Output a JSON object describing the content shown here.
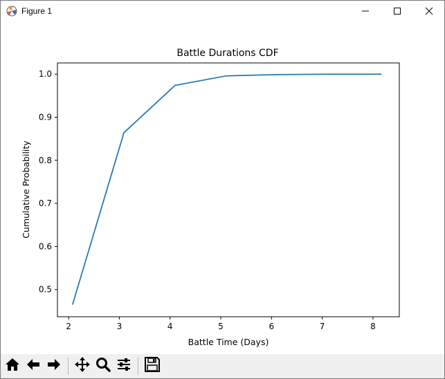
{
  "window": {
    "title": "Figure 1",
    "icons": {
      "app": "matplotlib-icon",
      "minimize": "minimize-icon",
      "maximize": "maximize-icon",
      "close": "close-icon"
    }
  },
  "toolbar": {
    "buttons": [
      {
        "name": "home",
        "icon": "home-icon"
      },
      {
        "name": "back",
        "icon": "arrow-left-icon"
      },
      {
        "name": "forward",
        "icon": "arrow-right-icon"
      },
      {
        "name": "pan",
        "icon": "move-icon"
      },
      {
        "name": "zoom",
        "icon": "magnifier-icon"
      },
      {
        "name": "configure",
        "icon": "sliders-icon"
      },
      {
        "name": "save",
        "icon": "floppy-disk-icon"
      }
    ]
  },
  "colors": {
    "line": "#1f77b4",
    "toolbar_bg": "#f0f0f0"
  },
  "chart_data": {
    "type": "line",
    "title": "Battle Durations CDF",
    "xlabel": "Battle Time (Days)",
    "ylabel": "Cumulative Probability",
    "xlim": [
      1.78,
      8.52
    ],
    "ylim": [
      0.437,
      1.026
    ],
    "xticks": [
      2,
      3,
      4,
      5,
      6,
      7,
      8
    ],
    "yticks": [
      0.5,
      0.6,
      0.7,
      0.8,
      0.9,
      1.0
    ],
    "ytick_labels": [
      "0.5",
      "0.6",
      "0.7",
      "0.8",
      "0.9",
      "1.0"
    ],
    "grid": false,
    "series": [
      {
        "x": [
          2.08,
          3.09,
          4.1,
          5.11,
          6.12,
          7.13,
          8.16
        ],
        "y": [
          0.466,
          0.864,
          0.974,
          0.996,
          0.999,
          1.0,
          1.0
        ]
      }
    ]
  }
}
